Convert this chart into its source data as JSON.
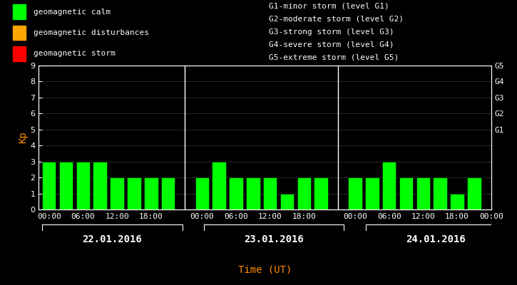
{
  "background_color": "#000000",
  "plot_bg_color": "#000000",
  "bar_color": "#00ff00",
  "bar_edge_color": "#000000",
  "text_color": "#ffffff",
  "xlabel_color": "#ff8c00",
  "kp_label_color": "#ff8c00",
  "grid_color": "#ffffff",
  "ylabel": "Kp",
  "xlabel": "Time (UT)",
  "ylim": [
    0,
    9
  ],
  "yticks": [
    0,
    1,
    2,
    3,
    4,
    5,
    6,
    7,
    8,
    9
  ],
  "days": [
    "22.01.2016",
    "23.01.2016",
    "24.01.2016"
  ],
  "kp_values": [
    [
      3,
      3,
      3,
      3,
      2,
      2,
      2,
      2
    ],
    [
      2,
      3,
      2,
      2,
      2,
      1,
      2,
      2
    ],
    [
      2,
      2,
      3,
      2,
      2,
      2,
      1,
      2
    ]
  ],
  "time_labels": [
    "00:00",
    "06:00",
    "12:00",
    "18:00"
  ],
  "right_labels": [
    "G5",
    "G4",
    "G3",
    "G2",
    "G1"
  ],
  "right_label_yvals": [
    9,
    8,
    7,
    6,
    5
  ],
  "legend_items": [
    {
      "label": "geomagnetic calm",
      "color": "#00ff00"
    },
    {
      "label": "geomagnetic disturbances",
      "color": "#ffa500"
    },
    {
      "label": "geomagnetic storm",
      "color": "#ff0000"
    }
  ],
  "storm_text": [
    "G1-minor storm (level G1)",
    "G2-moderate storm (level G2)",
    "G3-strong storm (level G3)",
    "G4-severe storm (level G4)",
    "G5-extreme storm (level G5)"
  ],
  "font_size": 8,
  "bar_width": 0.82
}
